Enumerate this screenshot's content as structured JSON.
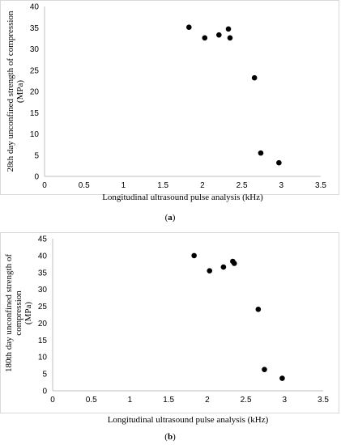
{
  "chart_data": [
    {
      "type": "scatter",
      "caption_prefix": "(",
      "caption_letter": "a",
      "caption_suffix": ")",
      "xlabel": "Longitudinal ultrasound pulse analysis (kHz)",
      "ylabel_lines": [
        "28th day unconfined strength of compression",
        "(MPa)"
      ],
      "xlim": [
        0,
        3.5
      ],
      "ylim": [
        0,
        40
      ],
      "xticks": [
        "0",
        "0.5",
        "1",
        "1.5",
        "2",
        "2.5",
        "3",
        "3.5"
      ],
      "yticks": [
        "0",
        "5",
        "10",
        "15",
        "20",
        "25",
        "30",
        "35",
        "40"
      ],
      "grid": false,
      "marker_color": "#000000",
      "points": [
        {
          "x": 1.83,
          "y": 35.1
        },
        {
          "x": 2.03,
          "y": 32.6
        },
        {
          "x": 2.21,
          "y": 33.3
        },
        {
          "x": 2.33,
          "y": 34.7
        },
        {
          "x": 2.35,
          "y": 32.6
        },
        {
          "x": 2.66,
          "y": 23.2
        },
        {
          "x": 2.74,
          "y": 5.5
        },
        {
          "x": 2.97,
          "y": 3.2
        }
      ]
    },
    {
      "type": "scatter",
      "caption_prefix": "(",
      "caption_letter": "b",
      "caption_suffix": ")",
      "xlabel": "Longitudinal ultrasound pulse analysis (kHz)",
      "ylabel_lines": [
        "180th day unconfined strength of",
        "compression",
        "(MPa)"
      ],
      "xlim": [
        0,
        3.5
      ],
      "ylim": [
        0,
        45
      ],
      "xticks": [
        "0",
        "0.5",
        "1",
        "1.5",
        "2",
        "2.5",
        "3",
        "3.5"
      ],
      "yticks": [
        "0",
        "5",
        "10",
        "15",
        "20",
        "25",
        "30",
        "35",
        "40",
        "45"
      ],
      "grid": false,
      "marker_color": "#000000",
      "points": [
        {
          "x": 1.83,
          "y": 40.0
        },
        {
          "x": 2.03,
          "y": 35.5
        },
        {
          "x": 2.21,
          "y": 36.6
        },
        {
          "x": 2.33,
          "y": 38.3
        },
        {
          "x": 2.35,
          "y": 37.7
        },
        {
          "x": 2.66,
          "y": 24.1
        },
        {
          "x": 2.74,
          "y": 6.3
        },
        {
          "x": 2.97,
          "y": 3.7
        }
      ]
    }
  ]
}
